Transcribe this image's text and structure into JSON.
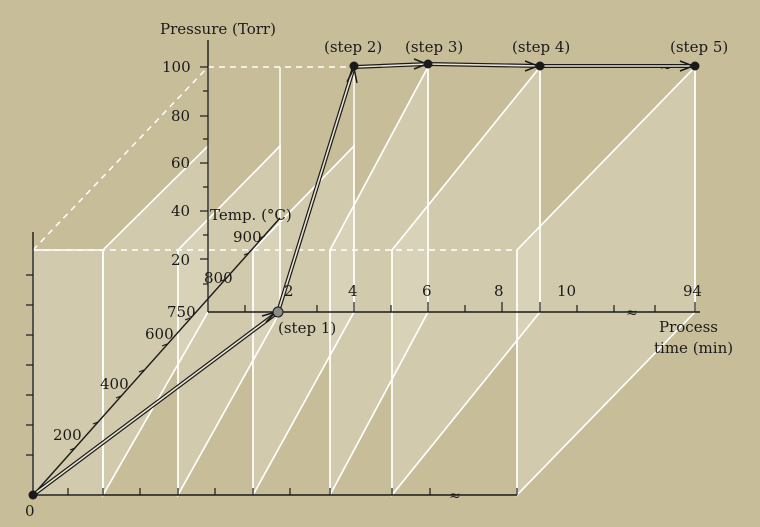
{
  "axes": {
    "pressure": {
      "label": "Pressure (Torr)",
      "ticks": [
        "100",
        "80",
        "60",
        "40",
        "20"
      ]
    },
    "temperature": {
      "label": "Temp. (°C)",
      "ticks": [
        "900",
        "800",
        "750",
        "600",
        "400",
        "200"
      ]
    },
    "time": {
      "label_line1": "Process",
      "label_line2": "time (min)",
      "ticks": [
        "2",
        "4",
        "6",
        "8",
        "10",
        "94"
      ]
    },
    "origin": "0",
    "break_mark": "≈"
  },
  "steps": [
    "(step 1)",
    "(step 2)",
    "(step 3)",
    "(step 4)",
    "(step 5)"
  ],
  "colors": {
    "background": "#c7bd99",
    "planes": "#ffffff",
    "path": "#1a1a1a"
  }
}
